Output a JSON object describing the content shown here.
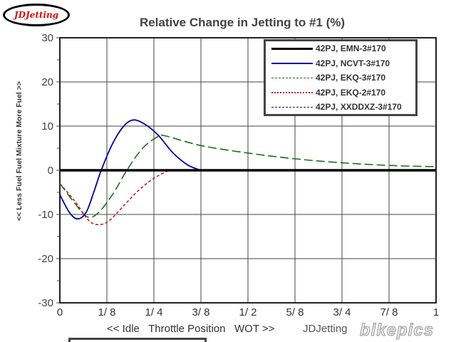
{
  "logo_text": "JDJetting",
  "watermark": "bikepics",
  "watermark_credit": "JDJetting",
  "chart_data": {
    "type": "line",
    "title": "Relative Change in Jetting to #1 (%)",
    "xlabel": "<< Idle   Throttle Position   WOT >>",
    "ylabel": "<< Less Fuel   Fuel Mixture  More Fuel >>",
    "xlim": [
      0,
      1
    ],
    "ylim": [
      -30,
      30
    ],
    "x_ticks": [
      0,
      0.125,
      0.25,
      0.375,
      0.5,
      0.625,
      0.75,
      0.875,
      1
    ],
    "x_tick_labels": [
      "0",
      "1/ 8",
      "1/ 4",
      "3/ 8",
      "1/ 2",
      "5/ 8",
      "3/ 4",
      "7/ 8",
      "1"
    ],
    "y_ticks": [
      -30,
      -20,
      -10,
      0,
      10,
      20,
      30
    ],
    "y_tick_labels": [
      "-30",
      "-20",
      "-10",
      "0",
      "10",
      "20",
      "30"
    ],
    "grid": true,
    "legend_position": "top-right",
    "series": [
      {
        "name": "42PJ, EMN-3#170",
        "color": "#000000",
        "style": "solid-thick",
        "points": [
          [
            0,
            0
          ],
          [
            1,
            0
          ]
        ]
      },
      {
        "name": "42PJ, NCVT-3#170",
        "color": "#0000a0",
        "style": "solid",
        "points": [
          [
            0,
            -5.5
          ],
          [
            0.025,
            -9.5
          ],
          [
            0.047,
            -11
          ],
          [
            0.07,
            -9.5
          ],
          [
            0.09,
            -5
          ],
          [
            0.11,
            0
          ],
          [
            0.14,
            6
          ],
          [
            0.17,
            10
          ],
          [
            0.197,
            11.4
          ],
          [
            0.23,
            10.2
          ],
          [
            0.263,
            7.8
          ],
          [
            0.3,
            4
          ],
          [
            0.34,
            1.2
          ],
          [
            0.375,
            0
          ]
        ]
      },
      {
        "name": "42PJ, EKQ-3#170",
        "color": "#1e6e1e",
        "style": "long-dash",
        "points": [
          [
            0,
            -3
          ],
          [
            0.04,
            -7.5
          ],
          [
            0.072,
            -10.5
          ],
          [
            0.1,
            -9.8
          ],
          [
            0.14,
            -5.5
          ],
          [
            0.178,
            0
          ],
          [
            0.22,
            5
          ],
          [
            0.26,
            7.6
          ],
          [
            0.28,
            7.8
          ],
          [
            0.375,
            5.6
          ],
          [
            0.5,
            3.9
          ],
          [
            0.625,
            2.6
          ],
          [
            0.75,
            1.7
          ],
          [
            0.875,
            1.1
          ],
          [
            1,
            0.8
          ]
        ]
      },
      {
        "name": "42PJ, EKQ-2#170",
        "color": "#c02020",
        "style": "short-dash",
        "points": [
          [
            0,
            -3
          ],
          [
            0.04,
            -7
          ],
          [
            0.075,
            -11.2
          ],
          [
            0.1,
            -12.3
          ],
          [
            0.13,
            -11.5
          ],
          [
            0.17,
            -8
          ],
          [
            0.21,
            -4.5
          ],
          [
            0.25,
            -1.8
          ],
          [
            0.29,
            0
          ]
        ]
      },
      {
        "name": "42PJ, XXDDXZ-3#170",
        "color": "#3a0a4a",
        "style": "long-dash",
        "points": []
      }
    ]
  }
}
